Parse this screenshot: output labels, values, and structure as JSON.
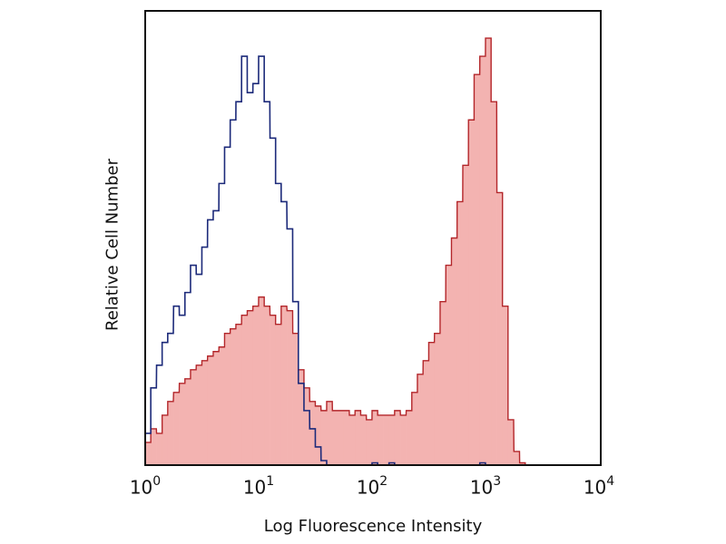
{
  "chart_data": {
    "type": "area",
    "title": "",
    "xlabel": "Log Fluorescence Intensity",
    "ylabel": "Relative Cell Number",
    "x_scale": "log",
    "xlim": [
      1,
      10000
    ],
    "ylim": [
      0,
      100
    ],
    "grid": false,
    "legend": "none",
    "x_ticks": [
      {
        "base": "10",
        "exp": "0",
        "value": 1
      },
      {
        "base": "10",
        "exp": "1",
        "value": 10
      },
      {
        "base": "10",
        "exp": "2",
        "value": 100
      },
      {
        "base": "10",
        "exp": "3",
        "value": 1000
      },
      {
        "base": "10",
        "exp": "4",
        "value": 10000
      }
    ],
    "x": [
      1,
      1.12,
      1.26,
      1.41,
      1.58,
      1.78,
      2.0,
      2.24,
      2.51,
      2.82,
      3.16,
      3.55,
      3.98,
      4.47,
      5.01,
      5.62,
      6.31,
      7.08,
      7.94,
      8.91,
      10,
      11.2,
      12.6,
      14.1,
      15.8,
      17.8,
      20.0,
      22.4,
      25.1,
      28.2,
      31.6,
      35.5,
      39.8,
      44.7,
      50.1,
      56.2,
      63.1,
      70.8,
      79.4,
      89.1,
      100,
      112,
      126,
      141,
      158,
      178,
      200,
      224,
      251,
      282,
      316,
      355,
      398,
      447,
      501,
      562,
      631,
      708,
      794,
      891,
      1000,
      1120,
      1260,
      1410,
      1580,
      1780,
      2000,
      2240,
      2510,
      2820,
      3160,
      3550,
      3980,
      4470,
      5010,
      5620,
      6310,
      7080,
      7940,
      8910
    ],
    "series": [
      {
        "style": "outline",
        "color": "#1c2a7a",
        "values": [
          7,
          17,
          22,
          27,
          29,
          35,
          33,
          38,
          44,
          42,
          48,
          54,
          56,
          62,
          70,
          76,
          80,
          90,
          82,
          84,
          90,
          80,
          72,
          62,
          58,
          52,
          36,
          18,
          12,
          8,
          4,
          1,
          0,
          0,
          0,
          0,
          0,
          0,
          0,
          0,
          0.5,
          0,
          0,
          0.5,
          0,
          0,
          0,
          0,
          0,
          0,
          0,
          0,
          0,
          0,
          0,
          0,
          0,
          0,
          0,
          0.5,
          0,
          0,
          0,
          0,
          0,
          0,
          0,
          0,
          0,
          0,
          0,
          0,
          0,
          0,
          0,
          0,
          0,
          0,
          0,
          0
        ]
      },
      {
        "style": "filled",
        "color": "#b3262a",
        "fill": "#f3b3b1",
        "values": [
          5,
          8,
          7,
          11,
          14,
          16,
          18,
          19,
          21,
          22,
          23,
          24,
          25,
          26,
          29,
          30,
          31,
          33,
          34,
          35,
          37,
          35,
          33,
          31,
          35,
          34,
          29,
          21,
          17,
          14,
          13,
          12,
          14,
          12,
          12,
          12,
          11,
          12,
          11,
          10,
          12,
          11,
          11,
          11,
          12,
          11,
          12,
          16,
          20,
          23,
          27,
          29,
          36,
          44,
          50,
          58,
          66,
          76,
          86,
          90,
          94,
          80,
          60,
          35,
          10,
          3,
          0.5,
          0,
          0,
          0,
          0,
          0,
          0,
          0,
          0,
          0,
          0,
          0,
          0,
          0
        ]
      }
    ]
  }
}
